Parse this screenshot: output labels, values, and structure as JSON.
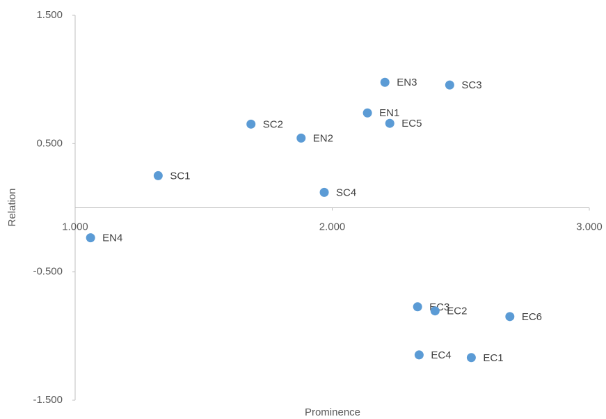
{
  "chart_data": {
    "type": "scatter",
    "x_label": "Prominence",
    "y_label": "Relation",
    "color": "#5b9bd5",
    "point_labels": [
      "SC1",
      "SC2",
      "EN2",
      "SC4",
      "EN1",
      "EN3",
      "EC5",
      "SC3",
      "EN4",
      "EC3",
      "EC2",
      "EC6",
      "EC4",
      "EC1"
    ],
    "x": [
      1.323,
      1.684,
      1.879,
      1.969,
      2.137,
      2.205,
      2.224,
      2.457,
      1.06,
      2.332,
      2.4,
      2.691,
      2.338,
      2.541
    ],
    "values": [
      0.25,
      0.652,
      0.543,
      0.12,
      0.739,
      0.978,
      0.658,
      0.957,
      -0.234,
      -0.772,
      -0.804,
      -0.848,
      -1.147,
      -1.168
    ],
    "xlim": [
      1,
      3
    ],
    "xticks": [
      {
        "value": 1,
        "label": "1.000"
      },
      {
        "value": 2,
        "label": "2.000"
      },
      {
        "value": 3,
        "label": "3.000"
      }
    ],
    "ylim": [
      -1.5,
      1.5
    ],
    "yticks": [
      {
        "value": -1.5,
        "label": "-1.500"
      },
      {
        "value": -0.5,
        "label": "-0.500"
      },
      {
        "value": 0.5,
        "label": "0.500"
      },
      {
        "value": 1.5,
        "label": "1.500"
      }
    ]
  }
}
